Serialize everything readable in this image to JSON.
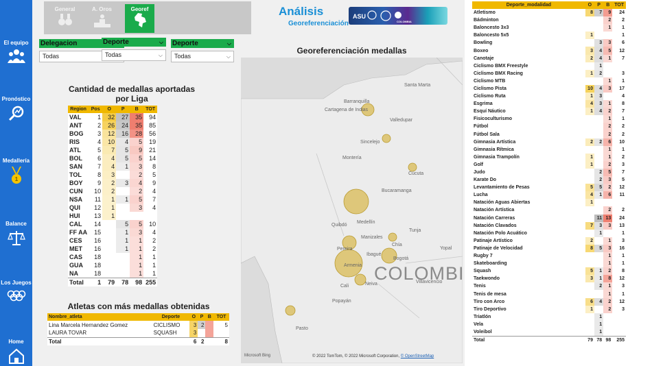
{
  "sidebar": {
    "items": [
      {
        "label": "El equipo",
        "icon": "team-icon"
      },
      {
        "label": "Pronóstico",
        "icon": "forecast-icon"
      },
      {
        "label": "Medallería",
        "icon": "medal-icon"
      },
      {
        "label": "Balance",
        "icon": "balance-scale-icon"
      },
      {
        "label": "Los Juegos",
        "icon": "olympic-rings-icon"
      },
      {
        "label": "Home",
        "icon": "home-icon"
      }
    ]
  },
  "toolbar": {
    "buttons": [
      {
        "label": "General",
        "icon": "medals-icon"
      },
      {
        "label": "A. Oros",
        "icon": "gold-podium-icon"
      },
      {
        "label": "Georef",
        "icon": "colombia-map-icon"
      }
    ]
  },
  "header": {
    "title": "Análisis",
    "subtitle": "Georeferenciación"
  },
  "filters": [
    {
      "label": "Delegacion",
      "value": "Todas"
    },
    {
      "label": "Deporte",
      "value": "Todas"
    },
    {
      "label": "Deporte",
      "value": "Todas"
    }
  ],
  "league_table": {
    "title": "Cantidad de medallas aportadas por Liga",
    "columns": [
      "Region",
      "Pos",
      "O",
      "P",
      "B",
      "TOT"
    ],
    "rows": [
      [
        "VAL",
        "1",
        "32",
        "27",
        "35",
        "94"
      ],
      [
        "ANT",
        "2",
        "26",
        "24",
        "35",
        "85"
      ],
      [
        "BOG",
        "3",
        "12",
        "16",
        "28",
        "56"
      ],
      [
        "RIS",
        "4",
        "10",
        "4",
        "5",
        "19"
      ],
      [
        "ATL",
        "5",
        "7",
        "5",
        "9",
        "21"
      ],
      [
        "BOL",
        "6",
        "4",
        "5",
        "5",
        "14"
      ],
      [
        "SAN",
        "7",
        "4",
        "1",
        "3",
        "8"
      ],
      [
        "TOL",
        "8",
        "3",
        "",
        "2",
        "5"
      ],
      [
        "BOY",
        "9",
        "2",
        "3",
        "4",
        "9"
      ],
      [
        "CUN",
        "10",
        "2",
        "",
        "2",
        "4"
      ],
      [
        "NSA",
        "11",
        "1",
        "1",
        "5",
        "7"
      ],
      [
        "QUI",
        "12",
        "1",
        "",
        "3",
        "4"
      ],
      [
        "HUI",
        "13",
        "1",
        "",
        "",
        ""
      ],
      [
        "CAL",
        "14",
        "",
        "5",
        "5",
        "10"
      ],
      [
        "FF AA",
        "15",
        "",
        "1",
        "3",
        "4"
      ],
      [
        "CES",
        "16",
        "",
        "1",
        "1",
        "2"
      ],
      [
        "MET",
        "16",
        "",
        "1",
        "1",
        "2"
      ],
      [
        "CAS",
        "18",
        "",
        "",
        "1",
        "1"
      ],
      [
        "GUA",
        "18",
        "",
        "",
        "1",
        "1"
      ],
      [
        "NA",
        "18",
        "",
        "",
        "1",
        "1"
      ]
    ],
    "total": [
      "Total",
      "1",
      "79",
      "78",
      "98",
      "255"
    ]
  },
  "athletes_table": {
    "title": "Atletas con más medallas obtenidas",
    "columns": [
      "Nombre_atleta",
      "Deporte",
      "O",
      "P",
      "B",
      "TOT"
    ],
    "rows": [
      [
        "Lina Marcela Hernandez Gomez",
        "CICLISMO",
        "3",
        "2",
        "",
        "5"
      ],
      [
        "LAURA TOVAR",
        "SQUASH",
        "3",
        "",
        "",
        ""
      ]
    ],
    "total": [
      "Total",
      "",
      "6",
      "2",
      "",
      "8"
    ]
  },
  "map": {
    "title": "Georeferenciación medallas",
    "country_label": "COLOMBI",
    "attribution": "© 2022 TomTom, © 2022 Microsoft Corporation,",
    "osm_link": "© OpenStreetMap",
    "bing": "Microsoft Bing",
    "cities": [
      "Barranquilla",
      "Cartagena de Indias",
      "Santa Marta",
      "Sincelejo",
      "Montería",
      "Cúcuta",
      "Bucaramanga",
      "Medellín",
      "Manizales",
      "Pereira",
      "Armenia",
      "Ibagué",
      "Bogotá",
      "Cali",
      "Popayán",
      "Tunja",
      "Neiva",
      "Pasto",
      "Quibdó",
      "Valledupar",
      "Villavicencio",
      "Yopal",
      "Chía"
    ]
  },
  "sports_table": {
    "columns": [
      "Deporte_modalidad",
      "O",
      "P",
      "B",
      "TOT"
    ],
    "rows": [
      [
        "Atletismo",
        "8",
        "7",
        "9",
        "24"
      ],
      [
        "Bádminton",
        "",
        "",
        "2",
        "2"
      ],
      [
        "Baloncesto 3x3",
        "",
        "",
        "1",
        "1"
      ],
      [
        "Baloncesto 5x5",
        "1",
        "",
        "",
        "1"
      ],
      [
        "Bowling",
        "",
        "3",
        "3",
        "6"
      ],
      [
        "Boxeo",
        "3",
        "4",
        "5",
        "12"
      ],
      [
        "Canotaje",
        "2",
        "4",
        "1",
        "7"
      ],
      [
        "Ciclismo BMX Freestyle",
        "",
        "1",
        "",
        ""
      ],
      [
        "Ciclismo BMX Racing",
        "1",
        "2",
        "",
        "3"
      ],
      [
        "Ciclismo MTB",
        "",
        "",
        "1",
        "1"
      ],
      [
        "Ciclismo Pista",
        "10",
        "4",
        "3",
        "17"
      ],
      [
        "Ciclismo Ruta",
        "1",
        "3",
        "",
        "4"
      ],
      [
        "Esgrima",
        "4",
        "3",
        "1",
        "8"
      ],
      [
        "Esquí Náutico",
        "1",
        "4",
        "2",
        "7"
      ],
      [
        "Fisicoculturismo",
        "",
        "",
        "1",
        "1"
      ],
      [
        "Fútbol",
        "",
        "",
        "2",
        "2"
      ],
      [
        "Fútbol Sala",
        "",
        "",
        "2",
        "2"
      ],
      [
        "Gimnasia Artística",
        "2",
        "2",
        "6",
        "10"
      ],
      [
        "Gimnasia Rítmica",
        "",
        "",
        "1",
        "1"
      ],
      [
        "Gimnasia Trampolín",
        "1",
        "",
        "1",
        "2"
      ],
      [
        "Golf",
        "1",
        "",
        "2",
        "3"
      ],
      [
        "Judo",
        "",
        "2",
        "5",
        "7"
      ],
      [
        "Karate Do",
        "",
        "2",
        "3",
        "5"
      ],
      [
        "Levantamiento de Pesas",
        "5",
        "5",
        "2",
        "12"
      ],
      [
        "Lucha",
        "4",
        "1",
        "6",
        "11"
      ],
      [
        "Natación Aguas Abiertas",
        "1",
        "",
        "",
        ""
      ],
      [
        "Natación Artística",
        "",
        "",
        "2",
        "2"
      ],
      [
        "Natación Carreras",
        "",
        "11",
        "13",
        "24"
      ],
      [
        "Natación Clavados",
        "7",
        "3",
        "3",
        "13"
      ],
      [
        "Natación Polo Acuático",
        "",
        "1",
        "",
        "1"
      ],
      [
        "Patinaje Artístico",
        "2",
        "",
        "1",
        "3"
      ],
      [
        "Patinaje de Velocidad",
        "8",
        "5",
        "3",
        "16"
      ],
      [
        "Rugby 7",
        "",
        "",
        "1",
        "1"
      ],
      [
        "Skateboarding",
        "",
        "",
        "1",
        "1"
      ],
      [
        "Squash",
        "5",
        "1",
        "2",
        "8"
      ],
      [
        "Taekwondo",
        "3",
        "1",
        "8",
        "12"
      ],
      [
        "Tenis",
        "",
        "2",
        "1",
        "3"
      ],
      [
        "Tenis de mesa",
        "",
        "",
        "1",
        "1"
      ],
      [
        "Tiro con Arco",
        "6",
        "4",
        "2",
        "12"
      ],
      [
        "Tiro Deportivo",
        "1",
        "",
        "2",
        "3"
      ],
      [
        "Triatlón",
        "",
        "1",
        "",
        ""
      ],
      [
        "Vela",
        "",
        "1",
        "",
        ""
      ],
      [
        "Voleibol",
        "",
        "1",
        "",
        ""
      ]
    ],
    "total": [
      "Total",
      "79",
      "78",
      "98",
      "255"
    ]
  },
  "colors": {
    "sidebar": "#1f6fd1",
    "filter_green": "#1aab4b",
    "header_gold": "#f0b800",
    "title_blue": "#1a8fd6",
    "bubble": "#d9b84a"
  }
}
